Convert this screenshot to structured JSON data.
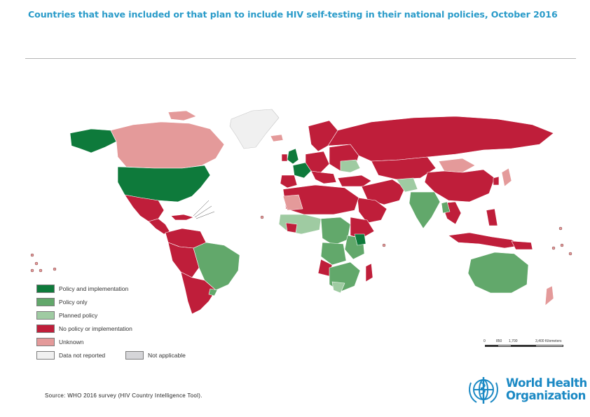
{
  "title": "Countries that have included or that plan to include HIV self-testing in their national policies, October 2016",
  "colors": {
    "policy_and_implementation": "#0e7a3b",
    "policy_only": "#62a86b",
    "planned_policy": "#9fcba2",
    "no_policy": "#bf1e3a",
    "unknown": "#e49a9a",
    "data_not_reported": "#f0f0f0",
    "not_applicable": "#d5d5d8",
    "title": "#2a9bc9",
    "who_blue": "#1b89c4"
  },
  "legend": {
    "items": [
      {
        "label": "Policy and implementation",
        "color": "#0e7a3b"
      },
      {
        "label": "Policy only",
        "color": "#62a86b"
      },
      {
        "label": "Planned policy",
        "color": "#9fcba2"
      },
      {
        "label": "No policy or implementation",
        "color": "#bf1e3a"
      },
      {
        "label": "Unknown",
        "color": "#e49a9a"
      },
      {
        "label": "Data not reported",
        "color": "#f0f0f0"
      },
      {
        "label": "Not applicable",
        "color": "#d5d5d8"
      }
    ]
  },
  "scale": {
    "labels": [
      "0",
      "850",
      "1,700",
      "3,400 Kilometers"
    ]
  },
  "source": "Source:  WHO 2016 survey (HIV Country Intelligence Tool).",
  "logo": {
    "line1": "World Health",
    "line2": "Organization"
  }
}
